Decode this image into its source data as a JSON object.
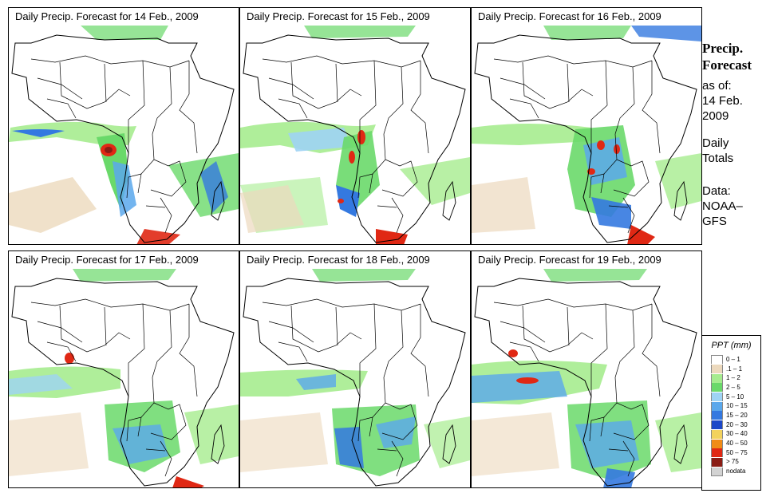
{
  "panels": [
    {
      "title": "Daily Precip. Forecast for  14 Feb., 2009"
    },
    {
      "title": "Daily Precip. Forecast for  15 Feb., 2009"
    },
    {
      "title": "Daily Precip. Forecast for  16 Feb., 2009"
    },
    {
      "title": "Daily Precip. Forecast for  17 Feb., 2009"
    },
    {
      "title": "Daily Precip. Forecast for  18 Feb., 2009"
    },
    {
      "title": "Daily Precip. Forecast for  19 Feb., 2009"
    }
  ],
  "side": {
    "title_line1": "Precip.",
    "title_line2": "Forecast",
    "as_of": "as of:",
    "date_line1": "14 Feb.",
    "date_line2": "2009",
    "daily_line1": "Daily",
    "daily_line2": "Totals",
    "data_line1": "Data:",
    "data_line2": "NOAA–",
    "data_line3": "GFS"
  },
  "legend": {
    "title": "PPT (mm)",
    "items": [
      {
        "label": "0 – 1",
        "color": "#ffffff"
      },
      {
        "label": ".1 – 1",
        "color": "#ecd9bd"
      },
      {
        "label": "1 – 2",
        "color": "#a6ec8f"
      },
      {
        "label": "2 – 5",
        "color": "#6ad96a"
      },
      {
        "label": "5 – 10",
        "color": "#9ed3f4"
      },
      {
        "label": "10 – 15",
        "color": "#5aa8ec"
      },
      {
        "label": "15 – 20",
        "color": "#3479e0"
      },
      {
        "label": "20 – 30",
        "color": "#1c47c8"
      },
      {
        "label": "30 – 40",
        "color": "#f2d25e"
      },
      {
        "label": "40 – 50",
        "color": "#f08c18"
      },
      {
        "label": "50 – 75",
        "color": "#e02814"
      },
      {
        "label": "> 75",
        "color": "#8a1c14"
      },
      {
        "label": "nodata",
        "color": "#d3d3d3"
      }
    ]
  }
}
